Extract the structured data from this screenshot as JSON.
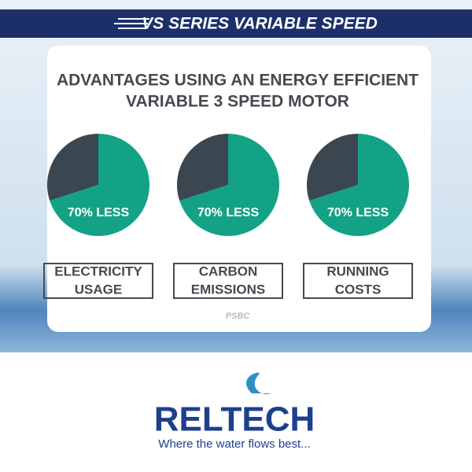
{
  "header": {
    "banner": "VS SERIES VARIABLE SPEED",
    "title": [
      "ADVANTAGES USING AN ENERGY EFFICIENT",
      "VARIABLE 3 SPEED MOTOR"
    ],
    "watermark": "PSBC"
  },
  "chart_data": [
    {
      "type": "pie",
      "title": [
        "ELECTRICITY",
        "USAGE"
      ],
      "categories": [
        null,
        null
      ],
      "values": [
        70,
        30
      ],
      "value_labels": [
        "70% LESS",
        null
      ],
      "colors": [
        "#14a286",
        "#3a4650"
      ]
    },
    {
      "type": "pie",
      "title": [
        "CARBON",
        "EMISSIONS"
      ],
      "categories": [
        null,
        null
      ],
      "values": [
        70,
        30
      ],
      "value_labels": [
        "70% LESS",
        null
      ],
      "colors": [
        "#14a286",
        "#3a4650"
      ]
    },
    {
      "type": "pie",
      "title": [
        "RUNNING",
        "COSTS"
      ],
      "categories": [
        null,
        null
      ],
      "values": [
        70,
        30
      ],
      "value_labels": [
        "70% LESS",
        null
      ],
      "colors": [
        "#14a286",
        "#3a4650"
      ]
    }
  ],
  "footer": {
    "brand": "RELTECH",
    "tagline": "Where the water flows best..."
  }
}
